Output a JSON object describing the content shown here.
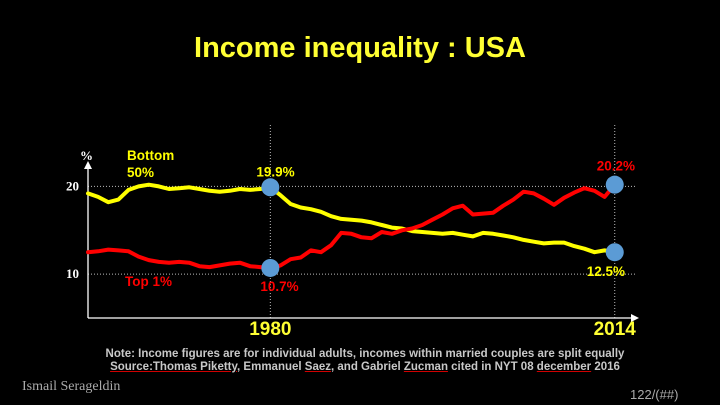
{
  "title": "Income inequality : USA",
  "chart_data": {
    "type": "line",
    "ylabel": "%",
    "yticks": [
      {
        "value": 10,
        "label": "10"
      },
      {
        "value": 20,
        "label": "20"
      }
    ],
    "ylim": [
      5,
      27
    ],
    "xlim": [
      1962,
      2016
    ],
    "xticks": [
      {
        "value": 1980,
        "label": "1980"
      },
      {
        "value": 2014,
        "label": "2014"
      }
    ],
    "grid": true,
    "series": [
      {
        "name": "Bottom 50%",
        "color": "#ffff00",
        "x": [
          1962,
          1963,
          1964,
          1965,
          1966,
          1967,
          1968,
          1969,
          1970,
          1971,
          1972,
          1973,
          1974,
          1975,
          1976,
          1977,
          1978,
          1979,
          1980,
          1981,
          1982,
          1983,
          1984,
          1985,
          1986,
          1987,
          1988,
          1989,
          1990,
          1991,
          1992,
          1993,
          1994,
          1995,
          1996,
          1997,
          1998,
          1999,
          2000,
          2001,
          2002,
          2003,
          2004,
          2005,
          2006,
          2007,
          2008,
          2009,
          2010,
          2011,
          2012,
          2013,
          2014
        ],
        "y": [
          19.2,
          18.8,
          18.2,
          18.5,
          19.6,
          20.0,
          20.2,
          20.0,
          19.7,
          19.8,
          19.9,
          19.7,
          19.5,
          19.4,
          19.5,
          19.7,
          19.6,
          19.7,
          19.9,
          19.0,
          18.0,
          17.6,
          17.4,
          17.1,
          16.6,
          16.3,
          16.2,
          16.1,
          15.9,
          15.6,
          15.3,
          15.2,
          14.9,
          14.8,
          14.7,
          14.6,
          14.7,
          14.5,
          14.3,
          14.7,
          14.6,
          14.4,
          14.2,
          13.9,
          13.7,
          13.5,
          13.6,
          13.6,
          13.2,
          12.9,
          12.5,
          12.7,
          12.5
        ]
      },
      {
        "name": "Top 1%",
        "color": "#ff0000",
        "x": [
          1962,
          1963,
          1964,
          1965,
          1966,
          1967,
          1968,
          1969,
          1970,
          1971,
          1972,
          1973,
          1974,
          1975,
          1976,
          1977,
          1978,
          1979,
          1980,
          1981,
          1982,
          1983,
          1984,
          1985,
          1986,
          1987,
          1988,
          1989,
          1990,
          1991,
          1992,
          1993,
          1994,
          1995,
          1996,
          1997,
          1998,
          1999,
          2000,
          2001,
          2002,
          2003,
          2004,
          2005,
          2006,
          2007,
          2008,
          2009,
          2010,
          2011,
          2012,
          2013,
          2014
        ],
        "y": [
          12.5,
          12.6,
          12.8,
          12.7,
          12.6,
          12.0,
          11.6,
          11.4,
          11.3,
          11.4,
          11.3,
          10.9,
          10.8,
          11.0,
          11.2,
          11.3,
          10.9,
          10.8,
          10.7,
          11.0,
          11.7,
          11.9,
          12.7,
          12.5,
          13.3,
          14.7,
          14.6,
          14.2,
          14.1,
          14.8,
          14.6,
          15.0,
          15.2,
          15.6,
          16.2,
          16.8,
          17.5,
          17.8,
          16.8,
          16.9,
          17.0,
          17.8,
          18.5,
          19.4,
          19.2,
          18.6,
          17.9,
          18.7,
          19.3,
          19.8,
          19.5,
          18.8,
          20.2
        ]
      }
    ],
    "annotations": [
      {
        "text": "19.9%",
        "x": 1980,
        "y": 19.9,
        "color": "#ffff00"
      },
      {
        "text": "10.7%",
        "x": 1980,
        "y": 10.7,
        "color": "#ff0000"
      },
      {
        "text": "20.2%",
        "x": 2014,
        "y": 20.2,
        "color": "#ff0000"
      },
      {
        "text": "12.5%",
        "x": 2014,
        "y": 12.5,
        "color": "#ffff00"
      }
    ],
    "series_labels": [
      {
        "lines": [
          "Bottom",
          "50%"
        ],
        "color": "#ffff00"
      },
      {
        "lines": [
          "Top 1%"
        ],
        "color": "#ff0000"
      }
    ],
    "marker_color": "#5b9bd5"
  },
  "notes": {
    "line1": "Note: Income figures are for individual adults, incomes within married couples are split equally",
    "line2_parts": [
      "Source:Thomas Piketty",
      ", Emmanuel ",
      "Saez",
      ", and Gabriel ",
      "Zucman",
      " cited in NYT  08 ",
      "december",
      " 2016"
    ]
  },
  "footer": {
    "left": "Ismail Serageldin",
    "right": "122/(##)"
  }
}
